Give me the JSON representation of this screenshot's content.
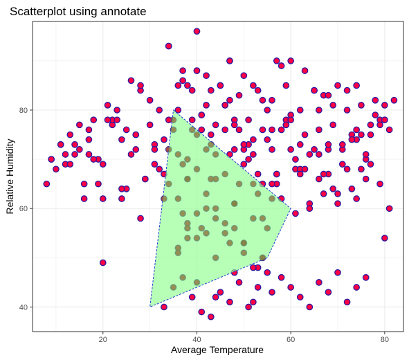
{
  "chart_data": {
    "type": "scatter",
    "title": "Scatterplot using annotate",
    "xlabel": "Average Temperature",
    "ylabel": "Relative Humidity",
    "xlim": [
      5,
      84
    ],
    "ylim": [
      35,
      98
    ],
    "x_ticks": [
      20,
      40,
      60,
      80
    ],
    "y_ticks": [
      40,
      60,
      80
    ],
    "grid": true,
    "colors": {
      "point_fill": "#ff0044",
      "point_stroke": "#2a1aa0",
      "inside_point_fill": "#7a7a3a",
      "polygon_fill": "#90ff90",
      "polygon_stroke": "#1a3ad0",
      "grid": "#ebebeb",
      "panel_border": "#333333"
    },
    "polygon": {
      "x": [
        35,
        60,
        55,
        30
      ],
      "y": [
        80,
        60,
        50,
        40
      ]
    },
    "x": [
      8,
      9,
      10,
      11,
      12,
      13,
      14,
      15,
      16,
      17,
      18,
      19,
      20,
      21,
      22,
      23,
      24,
      25,
      26,
      27,
      28,
      29,
      30,
      31,
      32,
      33,
      34,
      35,
      36,
      37,
      38,
      39,
      40,
      41,
      42,
      43,
      44,
      45,
      46,
      47,
      48,
      49,
      50,
      51,
      52,
      53,
      54,
      55,
      56,
      57,
      58,
      59,
      60,
      61,
      62,
      63,
      64,
      65,
      66,
      67,
      68,
      69,
      70,
      71,
      72,
      73,
      74,
      75,
      76,
      77,
      78,
      79,
      80,
      81,
      82,
      9,
      11,
      12,
      14,
      15,
      17,
      18,
      20,
      22,
      23,
      25,
      27,
      28,
      30,
      31,
      33,
      34,
      36,
      37,
      39,
      41,
      42,
      43,
      45,
      46,
      48,
      49,
      51,
      52,
      54,
      56,
      57,
      59,
      61,
      62,
      63,
      65,
      66,
      68,
      69,
      71,
      72,
      74,
      75,
      77,
      79,
      80,
      16,
      19,
      24,
      26,
      29,
      31,
      34,
      36,
      38,
      40,
      43,
      47,
      50,
      53,
      56,
      58,
      60,
      63,
      66,
      69,
      72,
      75,
      78,
      81,
      13,
      17,
      21,
      27,
      32,
      35,
      38,
      41,
      44,
      46,
      49,
      52,
      55,
      59,
      62,
      65,
      68,
      71,
      74,
      77,
      80,
      20,
      24,
      28,
      33,
      37,
      39,
      42,
      48,
      51,
      54,
      57,
      60,
      64,
      67,
      70,
      73,
      76,
      79,
      34,
      37,
      40,
      43,
      47,
      50,
      53,
      56,
      58,
      61,
      64,
      67,
      70,
      73,
      76,
      36,
      38,
      40,
      42,
      44,
      46,
      48,
      50,
      52,
      54,
      56,
      38,
      40,
      42,
      44,
      46,
      48,
      50,
      52,
      54,
      36,
      38,
      40,
      42,
      44,
      46,
      48,
      50,
      36,
      38,
      41,
      44,
      47,
      50,
      53,
      55,
      33,
      35,
      37,
      39,
      41,
      43,
      45,
      47,
      49,
      51,
      53,
      40,
      44,
      48,
      52,
      56,
      58,
      60,
      62,
      64,
      66,
      68,
      70,
      72,
      74,
      76,
      40,
      34,
      47,
      57,
      59,
      66,
      68,
      74,
      62,
      60,
      52,
      54,
      80,
      55
    ],
    "y": [
      65,
      70,
      68,
      73,
      69,
      75,
      71,
      72,
      62,
      76,
      78,
      70,
      69,
      81,
      77,
      80,
      74,
      64,
      86,
      75,
      84,
      66,
      82,
      73,
      80,
      67,
      93,
      78,
      71,
      86,
      66,
      84,
      88,
      79,
      87,
      75,
      77,
      85,
      81,
      90,
      72,
      83,
      87,
      70,
      85,
      67,
      76,
      74,
      82,
      65,
      89,
      77,
      90,
      68,
      73,
      88,
      71,
      84,
      66,
      83,
      72,
      64,
      85,
      69,
      80,
      75,
      62,
      81,
      70,
      77,
      82,
      65,
      78,
      60,
      82,
      70,
      73,
      71,
      73,
      77,
      71,
      70,
      62,
      78,
      78,
      76,
      72,
      85,
      77,
      69,
      74,
      78,
      85,
      88,
      76,
      79,
      72,
      84,
      85,
      76,
      78,
      76,
      78,
      74,
      82,
      72,
      67,
      78,
      70,
      68,
      75,
      84,
      71,
      73,
      81,
      72,
      84,
      76,
      68,
      75,
      78,
      81,
      65,
      65,
      64,
      71,
      66,
      72,
      65,
      80,
      85,
      88,
      73,
      82,
      72,
      84,
      76,
      76,
      79,
      68,
      76,
      77,
      68,
      75,
      79,
      76,
      69,
      74,
      78,
      75,
      68,
      76,
      70,
      76,
      71,
      81,
      65,
      71,
      80,
      77,
      67,
      72,
      67,
      73,
      74,
      69,
      78,
      49,
      62,
      58,
      62,
      59,
      78,
      81,
      77,
      73,
      65,
      67,
      72,
      61,
      67,
      61,
      74,
      71,
      77,
      72,
      69,
      75,
      66,
      71,
      73,
      63,
      65,
      62,
      59,
      60,
      63,
      63,
      64,
      66,
      62,
      66,
      68,
      63,
      66,
      67,
      61,
      69,
      65,
      58,
      62,
      57,
      59,
      55,
      60,
      57,
      61,
      53,
      58,
      50,
      52,
      56,
      54,
      60,
      58,
      55,
      56,
      53,
      51,
      54,
      56,
      50,
      53,
      51,
      48,
      47,
      40,
      44,
      46,
      42,
      39,
      38,
      43,
      41,
      45,
      40,
      44,
      45,
      42,
      47,
      41,
      43,
      46,
      44,
      42,
      40,
      45,
      43,
      47,
      41,
      44,
      46,
      96,
      93,
      90,
      90,
      85,
      80,
      83,
      85,
      80,
      78,
      48,
      50,
      54,
      56
    ]
  }
}
